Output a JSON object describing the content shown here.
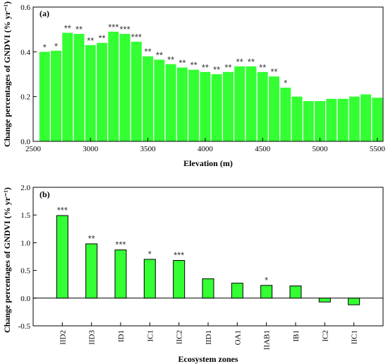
{
  "chart_data": [
    {
      "type": "bar",
      "panel_label": "(a)",
      "xlabel": "Elevation (m)",
      "ylabel": "Change percentages of GNDVI (% yr⁻¹)",
      "xlim": [
        2500,
        5550
      ],
      "ylim": [
        0,
        0.6
      ],
      "x_ticks": [
        "2500",
        "3000",
        "3500",
        "4000",
        "4500",
        "5000",
        "5500"
      ],
      "y_ticks": [
        "0.0",
        "0.2",
        "0.4",
        "0.6"
      ],
      "bar_color": "#33ff33",
      "x": [
        2600,
        2700,
        2800,
        2900,
        3000,
        3100,
        3200,
        3300,
        3400,
        3500,
        3600,
        3700,
        3800,
        3900,
        4000,
        4100,
        4200,
        4300,
        4400,
        4500,
        4600,
        4700,
        4800,
        4900,
        5000,
        5100,
        5200,
        5300,
        5400,
        5500
      ],
      "values": [
        0.4,
        0.405,
        0.485,
        0.48,
        0.43,
        0.44,
        0.49,
        0.48,
        0.445,
        0.38,
        0.365,
        0.345,
        0.33,
        0.32,
        0.31,
        0.3,
        0.31,
        0.335,
        0.335,
        0.31,
        0.29,
        0.24,
        0.2,
        0.18,
        0.18,
        0.19,
        0.19,
        0.2,
        0.21,
        0.195
      ],
      "significance": [
        "*",
        "*",
        "**",
        "**",
        "**",
        "**",
        "***",
        "***",
        "***",
        "**",
        "**",
        "**",
        "**",
        "**",
        "**",
        "**",
        "**",
        "**",
        "**",
        "**",
        "**",
        "*",
        "",
        "",
        "",
        "",
        "",
        "",
        "",
        ""
      ]
    },
    {
      "type": "bar",
      "panel_label": "(b)",
      "xlabel": "Ecosystem zones",
      "ylabel": "Change percentages of GNDVI (% yr⁻¹)",
      "ylim": [
        -0.5,
        2.0
      ],
      "y_ticks": [
        "-0.5",
        "0.0",
        "0.5",
        "1.0",
        "1.5",
        "2.0"
      ],
      "bar_color": "#33ff33",
      "categories": [
        "IID2",
        "IID3",
        "ID1",
        "IC1",
        "IIC2",
        "IID1",
        "OA1",
        "IIAB1",
        "IB1",
        "IC2",
        "IIC1"
      ],
      "values": [
        1.49,
        0.98,
        0.87,
        0.7,
        0.68,
        0.35,
        0.27,
        0.23,
        0.22,
        -0.07,
        -0.12
      ],
      "significance": [
        "***",
        "**",
        "***",
        "*",
        "***",
        "",
        "",
        "*",
        "",
        "",
        ""
      ]
    }
  ]
}
